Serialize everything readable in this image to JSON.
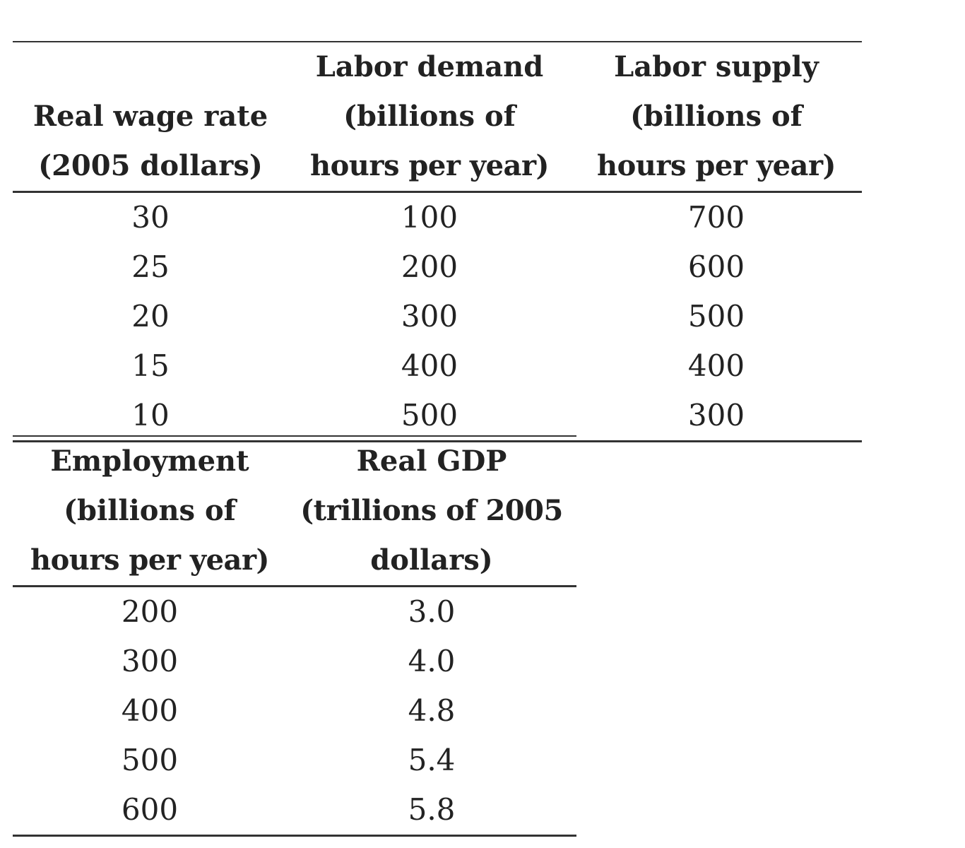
{
  "labor_table": {
    "headers": [
      [
        "Real wage rate",
        "(2005 dollars)"
      ],
      [
        "Labor demand",
        "(billions of",
        "hours per year)"
      ],
      [
        "Labor supply",
        "(billions of",
        "hours per year)"
      ]
    ],
    "rows": [
      [
        "30",
        "100",
        "700"
      ],
      [
        "25",
        "200",
        "600"
      ],
      [
        "20",
        "300",
        "500"
      ],
      [
        "15",
        "400",
        "400"
      ],
      [
        "10",
        "500",
        "300"
      ]
    ]
  },
  "gdp_table": {
    "headers": [
      [
        "Employment",
        "(billions of",
        "hours per year)"
      ],
      [
        "Real GDP",
        "(trillions of 2005",
        "dollars)"
      ]
    ],
    "rows": [
      [
        "200",
        "3.0"
      ],
      [
        "300",
        "4.0"
      ],
      [
        "400",
        "4.8"
      ],
      [
        "500",
        "5.4"
      ],
      [
        "600",
        "5.8"
      ]
    ]
  }
}
